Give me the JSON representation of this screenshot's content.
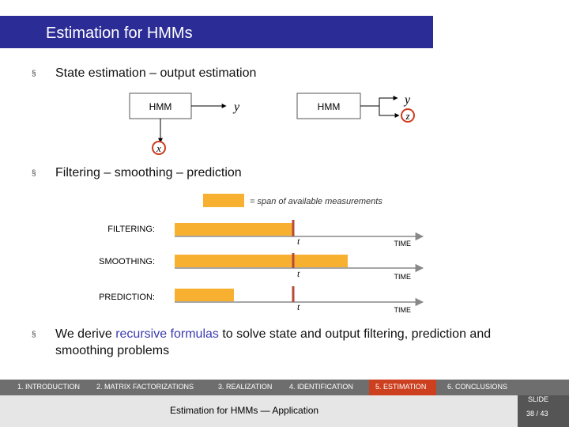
{
  "slide": {
    "title": "Estimation for HMMs",
    "bullets": [
      {
        "text": "State estimation – output estimation"
      },
      {
        "text": "Filtering – smoothing – prediction"
      },
      {
        "pre": "We derive ",
        "highlight": "recursive formulas",
        "post": " to solve state and output filtering, prediction and smoothing problems"
      }
    ],
    "bullet_marker": "§"
  },
  "diagram": {
    "hmm_label_left": "HMM",
    "hmm_label_right": "HMM",
    "y_left": "y",
    "y_right": "y",
    "x_label": "x",
    "z_label": "z",
    "legend_text": "= span of available measurements",
    "rows": [
      {
        "label": "FILTERING:",
        "t": "t",
        "time": "TIME"
      },
      {
        "label": "SMOOTHING:",
        "t": "t",
        "time": "TIME"
      },
      {
        "label": "PREDICTION:",
        "t": "t",
        "time": "TIME"
      }
    ],
    "colors": {
      "measurement": "#f8b030",
      "marker": "#b84a3a",
      "circle": "#cc3b1f",
      "axis": "#888888"
    }
  },
  "footer": {
    "nav": [
      "1. INTRODUCTION",
      "2. MATRIX FACTORIZATIONS",
      "3. REALIZATION",
      "4. IDENTIFICATION",
      "5. ESTIMATION",
      "6. CONCLUSIONS"
    ],
    "active": "5. ESTIMATION",
    "center_text": "Estimation for HMMs — Application",
    "slide_label": "SLIDE",
    "page": "38 / 43"
  }
}
